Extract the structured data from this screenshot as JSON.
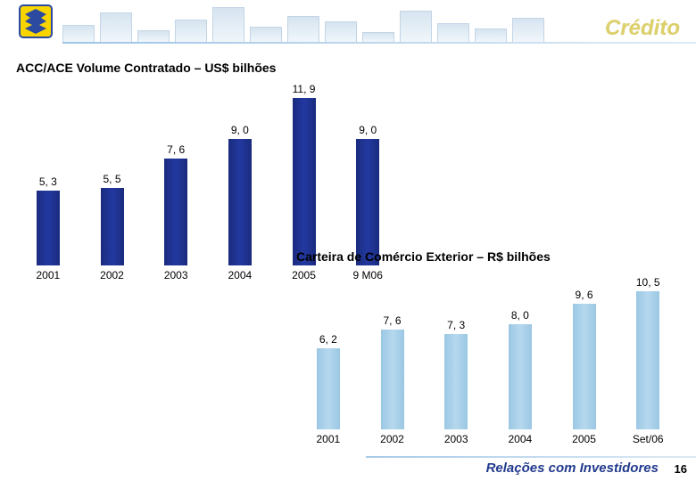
{
  "header": {
    "title": "Crédito",
    "title_color": "#ddd06a",
    "decorative_bar_heights": [
      20,
      34,
      14,
      26,
      40,
      18,
      30,
      24,
      12,
      36,
      22,
      16,
      28
    ],
    "decorative_bar_color": "#d6e4f0"
  },
  "chart1": {
    "title": "ACC/ACE Volume Contratado – US$ bilhões",
    "type": "bar",
    "categories": [
      "2001",
      "2002",
      "2003",
      "2004",
      "2005",
      "9 M06"
    ],
    "values": [
      5.3,
      5.5,
      7.6,
      9.0,
      11.9,
      9.0
    ],
    "value_labels": [
      "5, 3",
      "5, 5",
      "7, 6",
      "9, 0",
      "11, 9",
      "9, 0"
    ],
    "ylim": [
      0,
      12
    ],
    "bar_color": "#1f2e8a",
    "label_fontsize": 12,
    "title_fontsize": 14
  },
  "chart2": {
    "title": "Carteira de Comércio Exterior – R$ bilhões",
    "type": "bar",
    "categories": [
      "2001",
      "2002",
      "2003",
      "2004",
      "2005",
      "Set/06"
    ],
    "values": [
      6.2,
      7.6,
      7.3,
      8.0,
      9.6,
      10.5
    ],
    "value_labels": [
      "6, 2",
      "7, 6",
      "7, 3",
      "8, 0",
      "9, 6",
      "10, 5"
    ],
    "ylim": [
      0,
      11
    ],
    "bar_color": "#a8cfe8",
    "label_fontsize": 12,
    "title_fontsize": 14
  },
  "footer": {
    "text": "Relações com Investidores",
    "color": "#223a8c",
    "page": "16"
  }
}
